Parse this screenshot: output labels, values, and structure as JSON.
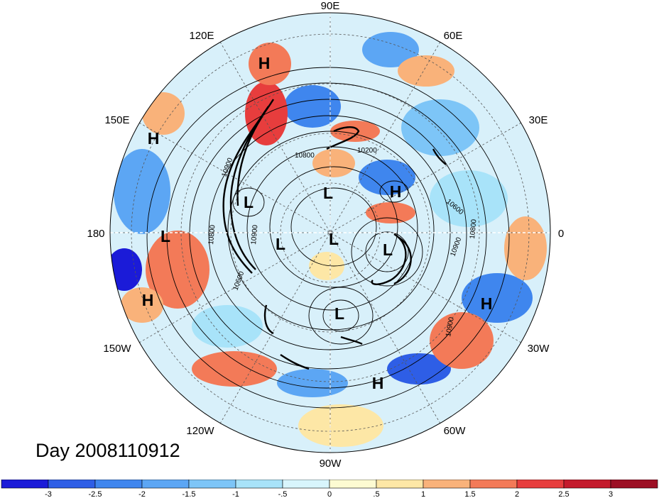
{
  "title": "Day 2008110912",
  "longitude_labels": [
    {
      "text": "90E",
      "name": "lon-label-90e"
    },
    {
      "text": "60E",
      "name": "lon-label-60e"
    },
    {
      "text": "30E",
      "name": "lon-label-30e"
    },
    {
      "text": "0",
      "name": "lon-label-0"
    },
    {
      "text": "30W",
      "name": "lon-label-30w"
    },
    {
      "text": "60W",
      "name": "lon-label-60w"
    },
    {
      "text": "90W",
      "name": "lon-label-90w"
    },
    {
      "text": "120W",
      "name": "lon-label-120w"
    },
    {
      "text": "150W",
      "name": "lon-label-150w"
    },
    {
      "text": "180",
      "name": "lon-label-180"
    },
    {
      "text": "150E",
      "name": "lon-label-150e"
    },
    {
      "text": "120E",
      "name": "lon-label-120e"
    }
  ],
  "pressure_centers": [
    "H",
    "H",
    "H",
    "H",
    "H",
    "H",
    "L",
    "L",
    "L",
    "L",
    "L",
    "L",
    "L"
  ],
  "contour_labels": [
    "10900",
    "10800",
    "10900",
    "10200",
    "10600",
    "10800",
    "10900",
    "10900",
    "10600",
    "10800"
  ],
  "colorbar": {
    "ticks": [
      "-3",
      "-2.5",
      "-2",
      "-1.5",
      "-1",
      "-.5",
      "0",
      ".5",
      "1",
      "1.5",
      "2",
      "2.5",
      "3"
    ],
    "colors": [
      "#1b1bd8",
      "#2e5ee6",
      "#3f86ee",
      "#5ca6f4",
      "#7dc5f7",
      "#a8e3f9",
      "#d8f5fc",
      "#fdfbd2",
      "#fde7a6",
      "#f9b27a",
      "#f37a58",
      "#e73d3d",
      "#c41a2c",
      "#9c0f24"
    ]
  }
}
